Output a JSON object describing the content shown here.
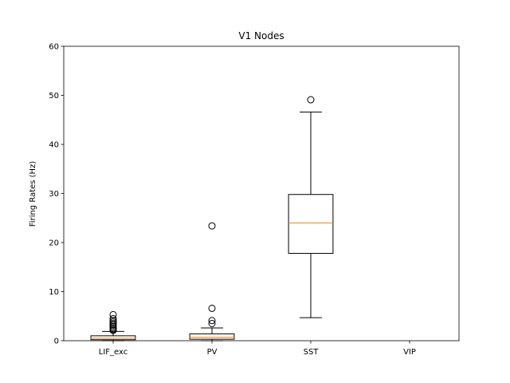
{
  "chart_data": {
    "type": "box",
    "title": "V1 Nodes",
    "xlabel": "",
    "ylabel": "Firing Rates (Hz)",
    "ylim": [
      0,
      60
    ],
    "yticks": [
      0,
      10,
      20,
      30,
      40,
      50,
      60
    ],
    "grid": false,
    "categories": [
      "LIF_exc",
      "PV",
      "SST",
      "VIP"
    ],
    "boxes": [
      {
        "name": "LIF_exc",
        "min": 0,
        "q1": 0.2,
        "median": 0.5,
        "q3": 1.0,
        "max": 1.9,
        "outliers": [
          2.1,
          2.3,
          2.6,
          2.9,
          3.2,
          3.5,
          3.8,
          4.1,
          4.5,
          5.3
        ]
      },
      {
        "name": "PV",
        "min": 0,
        "q1": 0.3,
        "median": 0.7,
        "q3": 1.4,
        "max": 2.6,
        "outliers": [
          3.5,
          4.1,
          6.6,
          23.4
        ]
      },
      {
        "name": "SST",
        "min": 4.7,
        "q1": 17.8,
        "median": 24.0,
        "q3": 29.8,
        "max": 46.6,
        "outliers": [
          49.1
        ]
      },
      {
        "name": "VIP",
        "empty": true
      }
    ],
    "colors": {
      "box": "#000000",
      "median": "#ff7f0e"
    }
  }
}
